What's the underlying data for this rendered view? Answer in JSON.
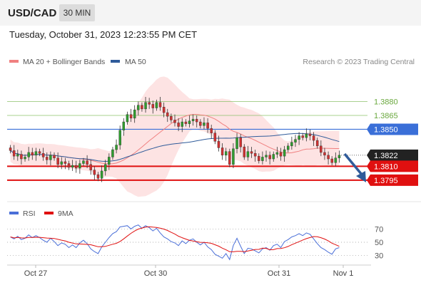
{
  "header": {
    "pair": "USD/CAD",
    "timeframe": "30 MIN",
    "datetime": "Tuesday, October 31, 2023 12:23:55 PM CET"
  },
  "legend": {
    "ma20_label": "MA 20 + Bollinger Bands",
    "ma50_label": "MA 50",
    "credit": "Research © 2023 Trading Central"
  },
  "colors": {
    "ma20": "#f08080",
    "ma50": "#2f5b9a",
    "candle_up": "#2e9e2e",
    "candle_down": "#d03030",
    "target": "#8dc06a",
    "pivot": "#3a6fd8",
    "support": "#e01010",
    "band": "#fde0e0",
    "rsi": "#4a6fd8",
    "rsi_ma": "#e01010"
  },
  "chart_data": [
    {
      "type": "candlestick",
      "x_labels": [
        "Oct 27",
        "Oct 30",
        "Oct 31",
        "Nov 1"
      ],
      "ylim": [
        1.3778,
        1.3905
      ],
      "price_levels": [
        {
          "label": "1.3880",
          "value": 1.388,
          "kind": "target"
        },
        {
          "label": "1.3865",
          "value": 1.3865,
          "kind": "target"
        },
        {
          "label": "1.3850",
          "value": 1.385,
          "kind": "pivot"
        },
        {
          "label": "1.3822",
          "value": 1.3822,
          "kind": "last"
        },
        {
          "label": "1.3810",
          "value": 1.381,
          "kind": "support"
        },
        {
          "label": "1.3795",
          "value": 1.3795,
          "kind": "support"
        }
      ],
      "close": [
        1.3827,
        1.3821,
        1.3823,
        1.3818,
        1.382,
        1.3825,
        1.3822,
        1.3826,
        1.3824,
        1.382,
        1.3817,
        1.3822,
        1.3819,
        1.3812,
        1.3815,
        1.3813,
        1.3809,
        1.3811,
        1.3808,
        1.3813,
        1.3816,
        1.3812,
        1.3806,
        1.3801,
        1.3797,
        1.3805,
        1.3812,
        1.382,
        1.3828,
        1.3833,
        1.3849,
        1.3858,
        1.3866,
        1.3862,
        1.3871,
        1.3876,
        1.3872,
        1.3879,
        1.3877,
        1.3873,
        1.3879,
        1.3874,
        1.3868,
        1.3864,
        1.386,
        1.3857,
        1.3853,
        1.3858,
        1.3856,
        1.3859,
        1.3861,
        1.3858,
        1.3854,
        1.3857,
        1.3851,
        1.3846,
        1.3837,
        1.383,
        1.3822,
        1.3826,
        1.3812,
        1.3829,
        1.3841,
        1.3831,
        1.382,
        1.3826,
        1.3824,
        1.3821,
        1.3816,
        1.382,
        1.3822,
        1.3818,
        1.3823,
        1.3825,
        1.3821,
        1.3828,
        1.3832,
        1.3836,
        1.3839,
        1.3843,
        1.3841,
        1.3845,
        1.3843,
        1.3838,
        1.3832,
        1.3825,
        1.3822,
        1.3818,
        1.3814,
        1.3819,
        1.3822
      ],
      "rsi": {
        "ylim": [
          20,
          80
        ],
        "ticks": [
          70,
          50,
          30
        ],
        "rsi_label": "RSI",
        "ma_label": "9MA",
        "values": [
          58,
          55,
          59,
          54,
          56,
          61,
          57,
          60,
          57,
          53,
          50,
          56,
          51,
          45,
          49,
          47,
          42,
          46,
          42,
          49,
          53,
          48,
          40,
          36,
          33,
          43,
          50,
          57,
          63,
          66,
          73,
          74,
          75,
          70,
          74,
          76,
          71,
          75,
          72,
          67,
          71,
          64,
          58,
          55,
          51,
          49,
          45,
          52,
          48,
          53,
          55,
          50,
          46,
          50,
          43,
          39,
          32,
          29,
          26,
          33,
          24,
          45,
          56,
          44,
          33,
          41,
          40,
          37,
          34,
          40,
          42,
          38,
          45,
          47,
          42,
          51,
          54,
          58,
          60,
          63,
          60,
          64,
          62,
          55,
          48,
          42,
          39,
          35,
          32,
          40,
          42
        ]
      }
    }
  ]
}
